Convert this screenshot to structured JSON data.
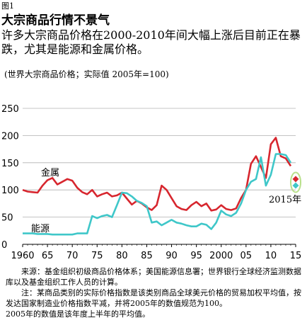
{
  "figure_label": "图1",
  "title": "大宗商品行情不景气",
  "subtitle": "许多大宗商品价格在2000-2010年间大幅上涨后目前正在暴跌，尤其是能源和金属价格。",
  "units": "(世界大宗商品价格；实际值 2005年=100)",
  "source": "来源：基金组织初级商品价格体系；美国能源信息署；世界银行全球经济监测数据库以及基金组织工作人员的计算。",
  "note_line1": "注：某商品类别的实际价格指数是该类别商品全球美元价格的贸易加权平均值，按发达国家制造业价格指数平减，并将2005年的数值规范为100。",
  "note_line2": "2005年的数值是该年度上半年的平均值。",
  "colors": {
    "metals": "#d7262e",
    "energy": "#3fc7c9",
    "grid": "#b0b0b0",
    "highlight": "#b8e08a"
  },
  "chart_data": {
    "type": "line",
    "title": "大宗商品行情不景气",
    "xlabel": "",
    "ylabel": "",
    "xlim": [
      1960,
      2015
    ],
    "ylim": [
      0,
      250
    ],
    "x_ticks": [
      1960,
      1965,
      1970,
      1975,
      1980,
      1985,
      1990,
      1995,
      2000,
      2005,
      2010,
      2015
    ],
    "x_tick_labels": [
      "1960",
      "65",
      "70",
      "75",
      "80",
      "85",
      "90",
      "95",
      "2000",
      "05",
      "10",
      "15"
    ],
    "y_ticks": [
      0,
      50,
      100,
      150,
      200,
      250
    ],
    "grid": "horizontal",
    "annotation": "2015年",
    "series": [
      {
        "name": "金属",
        "color": "#d7262e",
        "x": [
          1960,
          1961,
          1962,
          1963,
          1964,
          1965,
          1966,
          1967,
          1968,
          1969,
          1970,
          1971,
          1972,
          1973,
          1974,
          1975,
          1976,
          1977,
          1978,
          1979,
          1980,
          1981,
          1982,
          1983,
          1984,
          1985,
          1986,
          1987,
          1988,
          1989,
          1990,
          1991,
          1992,
          1993,
          1994,
          1995,
          1996,
          1997,
          1998,
          1999,
          2000,
          2001,
          2002,
          2003,
          2004,
          2005,
          2006,
          2007,
          2008,
          2009,
          2010,
          2011,
          2012,
          2013,
          2014
        ],
        "values": [
          100,
          97,
          96,
          95,
          108,
          118,
          122,
          110,
          115,
          120,
          117,
          104,
          96,
          92,
          100,
          88,
          92,
          95,
          88,
          90,
          95,
          84,
          73,
          80,
          75,
          68,
          63,
          72,
          108,
          100,
          85,
          70,
          65,
          63,
          72,
          78,
          70,
          75,
          62,
          64,
          72,
          65,
          63,
          66,
          85,
          100,
          148,
          162,
          142,
          122,
          184,
          196,
          162,
          158,
          144
        ]
      },
      {
        "name": "能源",
        "color": "#3fc7c9",
        "x": [
          1960,
          1961,
          1962,
          1963,
          1964,
          1965,
          1966,
          1967,
          1968,
          1969,
          1970,
          1971,
          1972,
          1973,
          1974,
          1975,
          1976,
          1977,
          1978,
          1979,
          1980,
          1981,
          1982,
          1983,
          1984,
          1985,
          1986,
          1987,
          1988,
          1989,
          1990,
          1991,
          1992,
          1993,
          1994,
          1995,
          1996,
          1997,
          1998,
          1999,
          2000,
          2001,
          2002,
          2003,
          2004,
          2005,
          2006,
          2007,
          2008,
          2009,
          2010,
          2011,
          2012,
          2013,
          2014
        ],
        "values": [
          20,
          20,
          20,
          19,
          19,
          19,
          18,
          18,
          18,
          18,
          18,
          20,
          20,
          20,
          52,
          48,
          52,
          54,
          50,
          72,
          95,
          94,
          88,
          80,
          76,
          70,
          40,
          42,
          35,
          40,
          45,
          40,
          38,
          35,
          33,
          33,
          38,
          36,
          28,
          40,
          62,
          55,
          52,
          58,
          75,
          100,
          115,
          120,
          160,
          108,
          128,
          166,
          166,
          164,
          150
        ]
      }
    ],
    "markers_2015": [
      {
        "series": "金属",
        "value": 120
      },
      {
        "series": "能源",
        "value": 108
      }
    ]
  }
}
